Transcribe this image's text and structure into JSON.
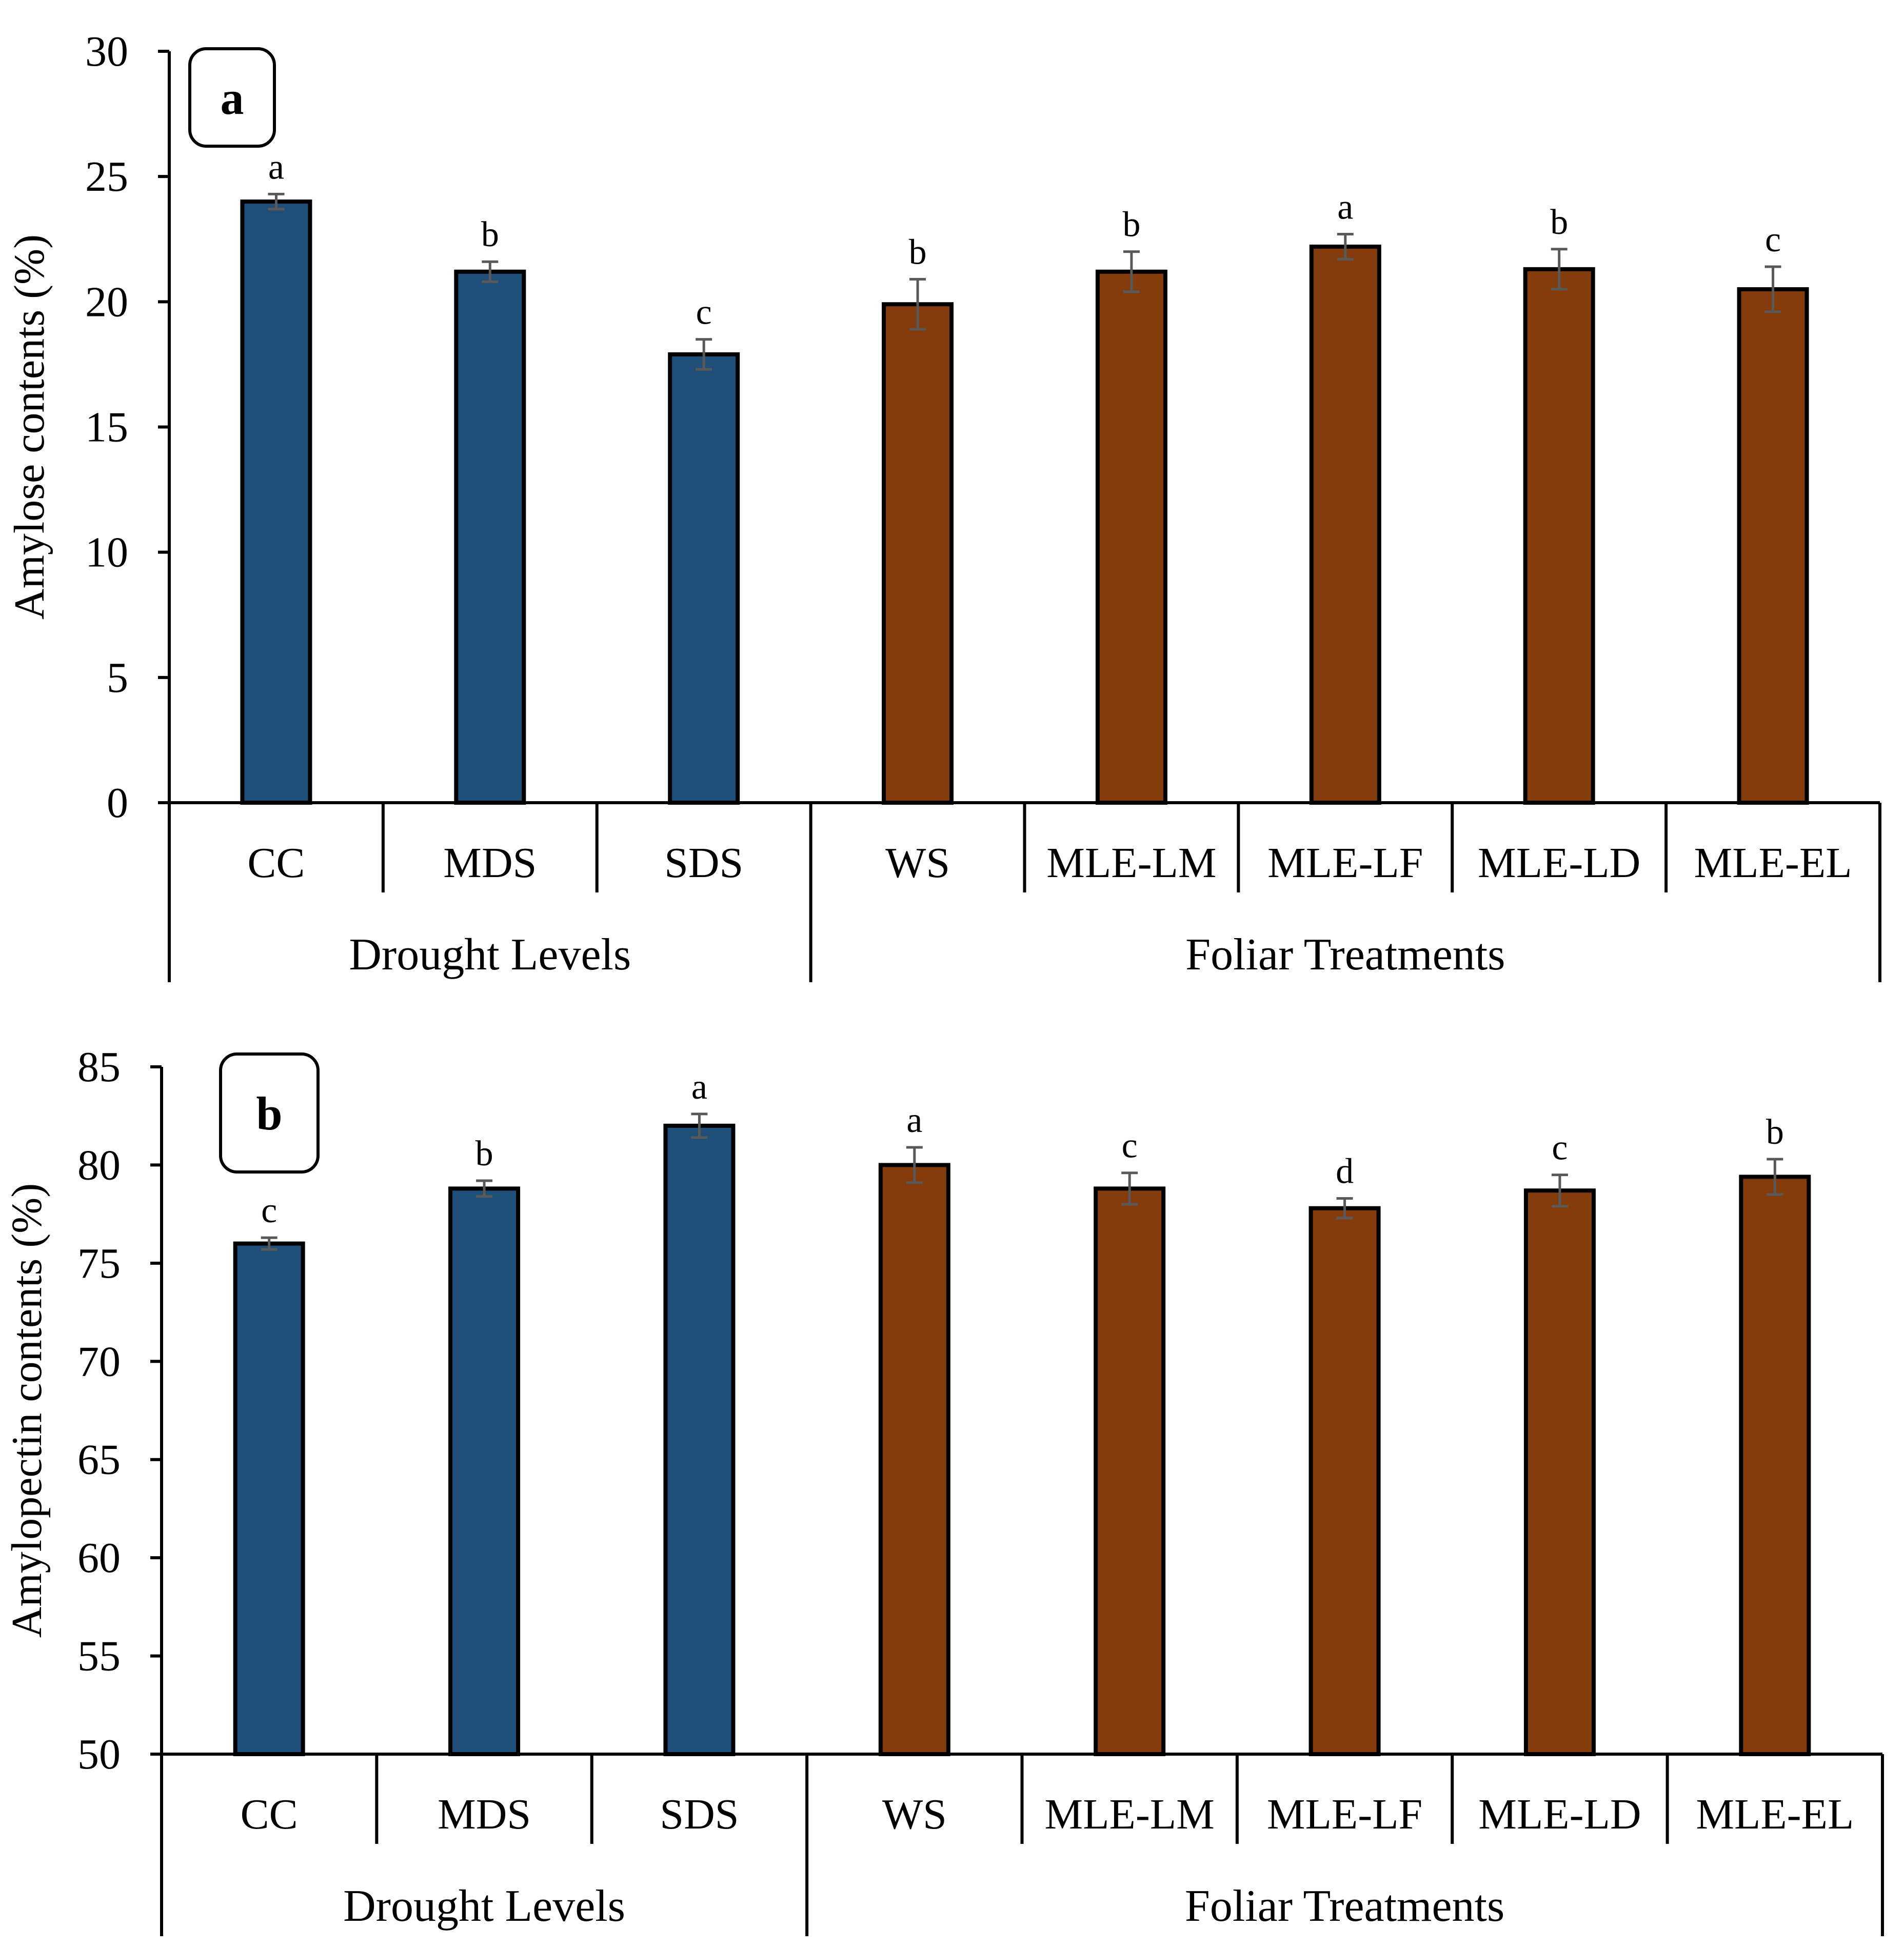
{
  "chart_data": [
    {
      "panel": "a",
      "type": "bar",
      "ylabel": "Amylose contents (%)",
      "ylim": [
        0,
        30
      ],
      "yticks": [
        0,
        5,
        10,
        15,
        20,
        25,
        30
      ],
      "categories": [
        "CC",
        "MDS",
        "SDS",
        "WS",
        "MLE-LM",
        "MLE-LF",
        "MLE-LD",
        "MLE-EL"
      ],
      "values": [
        24.0,
        21.2,
        17.9,
        19.9,
        21.2,
        22.2,
        21.3,
        20.5
      ],
      "errors": [
        0.3,
        0.4,
        0.6,
        1.0,
        0.8,
        0.5,
        0.8,
        0.9
      ],
      "letters": [
        "a",
        "b",
        "c",
        "b",
        "b",
        "a",
        "b",
        "c"
      ],
      "groups": [
        {
          "label": "Drought Levels",
          "count": 3,
          "color": "#1F4E79"
        },
        {
          "label": "Foliar Treatments",
          "count": 5,
          "color": "#843C0C"
        }
      ]
    },
    {
      "panel": "b",
      "type": "bar",
      "ylabel": "Amylopectin contents (%)",
      "ylim": [
        50,
        85
      ],
      "yticks": [
        50,
        55,
        60,
        65,
        70,
        75,
        80,
        85
      ],
      "categories": [
        "CC",
        "MDS",
        "SDS",
        "WS",
        "MLE-LM",
        "MLE-LF",
        "MLE-LD",
        "MLE-EL"
      ],
      "values": [
        76.0,
        78.8,
        82.0,
        80.0,
        78.8,
        77.8,
        78.7,
        79.4
      ],
      "errors": [
        0.3,
        0.4,
        0.6,
        0.9,
        0.8,
        0.5,
        0.8,
        0.9
      ],
      "letters": [
        "c",
        "b",
        "a",
        "a",
        "c",
        "d",
        "c",
        "b"
      ],
      "groups": [
        {
          "label": "Drought Levels",
          "count": 3,
          "color": "#1F4E79"
        },
        {
          "label": "Foliar Treatments",
          "count": 5,
          "color": "#843C0C"
        }
      ]
    }
  ]
}
